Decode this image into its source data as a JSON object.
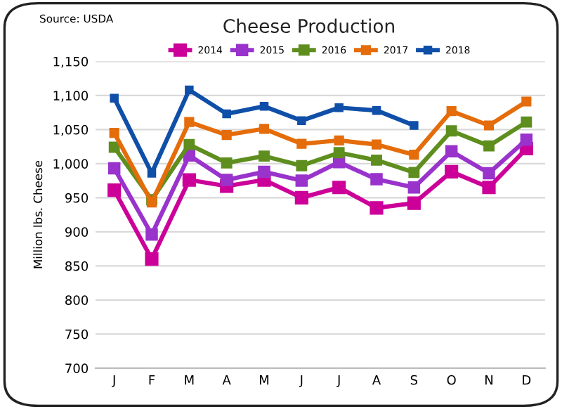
{
  "chart_data": {
    "type": "line",
    "title": "Cheese Production",
    "ylabel": "Million lbs. Cheese",
    "annotations": [
      "Source: USDA"
    ],
    "categories": [
      "J",
      "F",
      "M",
      "A",
      "M",
      "J",
      "J",
      "A",
      "S",
      "O",
      "N",
      "D"
    ],
    "series": [
      {
        "name": "2014",
        "color": "#cc0099",
        "values": [
          961,
          860,
          976,
          967,
          976,
          950,
          965,
          935,
          942,
          988,
          965,
          1022
        ]
      },
      {
        "name": "2015",
        "color": "#9933cc",
        "values": [
          993,
          896,
          1012,
          976,
          988,
          975,
          1002,
          977,
          965,
          1018,
          986,
          1035
        ]
      },
      {
        "name": "2016",
        "color": "#5e8e1e",
        "values": [
          1024,
          947,
          1028,
          1001,
          1011,
          997,
          1016,
          1005,
          987,
          1048,
          1026,
          1061
        ]
      },
      {
        "name": "2017",
        "color": "#e46c0a",
        "values": [
          1045,
          943,
          1061,
          1042,
          1051,
          1029,
          1034,
          1028,
          1013,
          1077,
          1056,
          1091
        ]
      },
      {
        "name": "2018",
        "color": "#0f4fa8",
        "values": [
          1096,
          986,
          1108,
          1073,
          1084,
          1063,
          1082,
          1078,
          1056,
          null,
          null,
          null
        ]
      }
    ],
    "ylim": [
      700,
      1150
    ],
    "yticks": [
      {
        "value": 700,
        "label": "700"
      },
      {
        "value": 750,
        "label": "750"
      },
      {
        "value": 800,
        "label": "800"
      },
      {
        "value": 850,
        "label": "850"
      },
      {
        "value": 900,
        "label": "900"
      },
      {
        "value": 950,
        "label": "950"
      },
      {
        "value": 1000,
        "label": "1,000"
      },
      {
        "value": 1050,
        "label": "1,050"
      },
      {
        "value": 1100,
        "label": "1,100"
      },
      {
        "value": 1150,
        "label": "1,150"
      }
    ],
    "grid": "y",
    "legend": "top",
    "marker": "square",
    "line_style": "solid"
  }
}
